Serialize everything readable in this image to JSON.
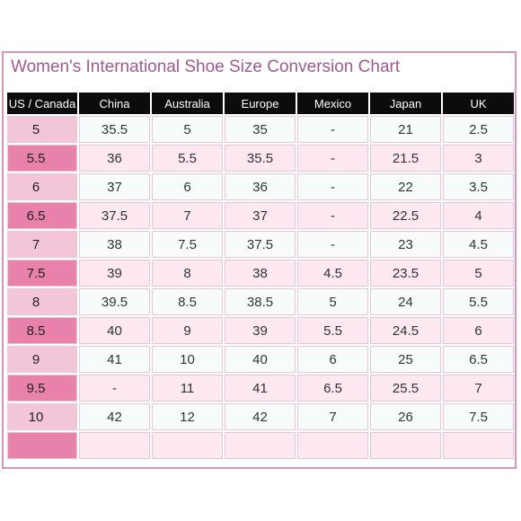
{
  "title": "Women's International Shoe Size Conversion Chart",
  "columns": [
    "US / Canada",
    "China",
    "Australia",
    "Europe",
    "Mexico",
    "Japan",
    "UK"
  ],
  "rows": [
    [
      "5",
      "35.5",
      "5",
      "35",
      "-",
      "21",
      "2.5"
    ],
    [
      "5.5",
      "36",
      "5.5",
      "35.5",
      "-",
      "21.5",
      "3"
    ],
    [
      "6",
      "37",
      "6",
      "36",
      "-",
      "22",
      "3.5"
    ],
    [
      "6.5",
      "37.5",
      "7",
      "37",
      "-",
      "22.5",
      "4"
    ],
    [
      "7",
      "38",
      "7.5",
      "37.5",
      "-",
      "23",
      "4.5"
    ],
    [
      "7.5",
      "39",
      "8",
      "38",
      "4.5",
      "23.5",
      "5"
    ],
    [
      "8",
      "39.5",
      "8.5",
      "38.5",
      "5",
      "24",
      "5.5"
    ],
    [
      "8.5",
      "40",
      "9",
      "39",
      "5.5",
      "24.5",
      "6"
    ],
    [
      "9",
      "41",
      "10",
      "40",
      "6",
      "25",
      "6.5"
    ],
    [
      "9.5",
      "-",
      "11",
      "41",
      "6.5",
      "25.5",
      "7"
    ],
    [
      "10",
      "42",
      "12",
      "42",
      "7",
      "26",
      "7.5"
    ]
  ],
  "colors": {
    "title": "#a05a8f",
    "frame": "#d995b6",
    "header_bg": "#0c0c0c",
    "us_light": "#f2c6d8",
    "us_dark": "#e982ab",
    "row_pink": "#fde8f1"
  }
}
